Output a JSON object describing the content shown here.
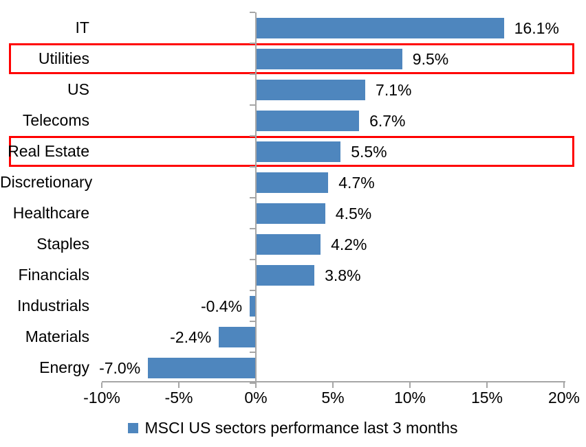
{
  "chart_data": {
    "type": "bar",
    "orientation": "horizontal",
    "categories": [
      "IT",
      "Utilities",
      "US",
      "Telecoms",
      "Real Estate",
      "Discretionary",
      "Healthcare",
      "Staples",
      "Financials",
      "Industrials",
      "Materials",
      "Energy"
    ],
    "values": [
      16.1,
      9.5,
      7.1,
      6.7,
      5.5,
      4.7,
      4.5,
      4.2,
      3.8,
      -0.4,
      -2.4,
      -7.0
    ],
    "value_labels": [
      "16.1%",
      "9.5%",
      "7.1%",
      "6.7%",
      "5.5%",
      "4.7%",
      "4.5%",
      "4.2%",
      "3.8%",
      "-0.4%",
      "-2.4%",
      "-7.0%"
    ],
    "highlighted_categories": [
      "Utilities",
      "Real Estate"
    ],
    "title": "",
    "xlabel": "",
    "ylabel": "",
    "x_axis": {
      "tick_labels": [
        "-10%",
        "-5%",
        "0%",
        "5%",
        "10%",
        "15%",
        "20%"
      ],
      "tick_values": [
        -10,
        -5,
        0,
        5,
        10,
        15,
        20
      ],
      "range": [
        -10,
        20
      ]
    },
    "grid": false,
    "legend": {
      "label": "MSCI US sectors performance last 3 months",
      "position": "bottom-center"
    },
    "colors": {
      "bar": "#4E86BE",
      "highlight_box": "#FF0000",
      "axis": "#A6A6A6",
      "text": "#000000",
      "background": "#FFFFFF"
    }
  }
}
